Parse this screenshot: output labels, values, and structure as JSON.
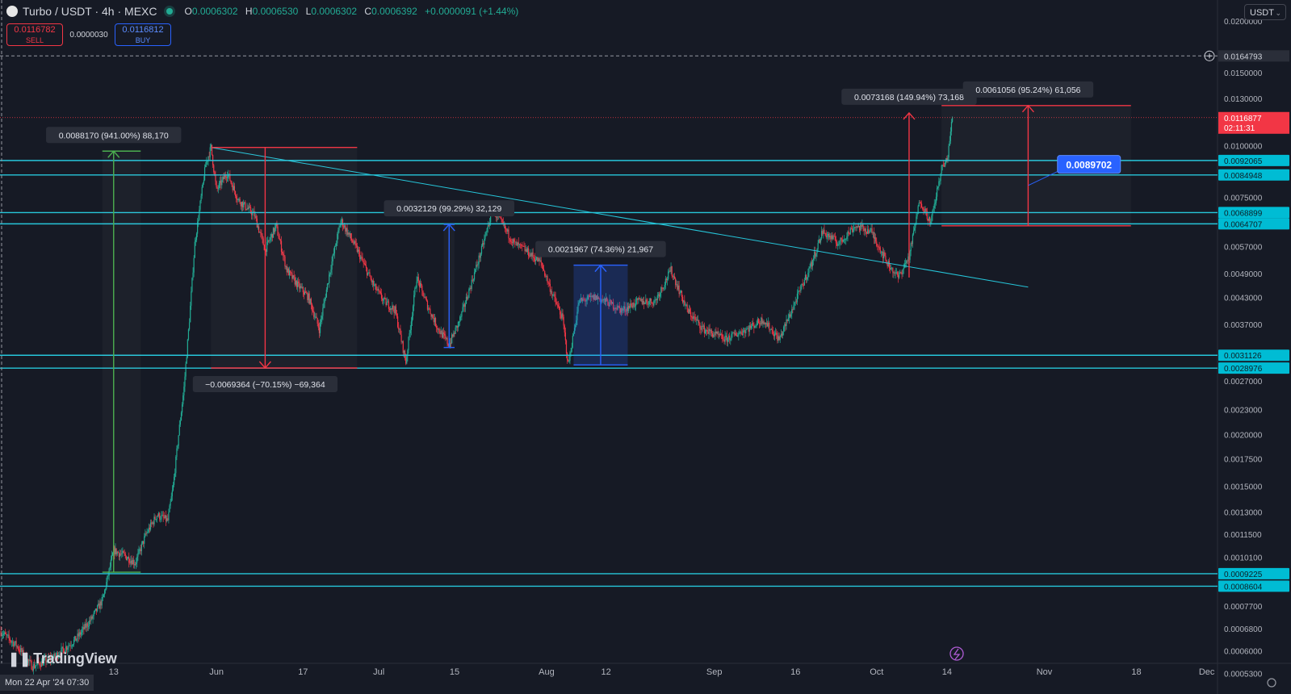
{
  "header": {
    "symbol": "Turbo / USDT · 4h · MEXC",
    "o_label": "O",
    "o_value": "0.0006302",
    "h_label": "H",
    "h_value": "0.0006530",
    "l_label": "L",
    "l_value": "0.0006302",
    "c_label": "C",
    "c_value": "0.0006392",
    "change": "+0.0000091 (+1.44%)"
  },
  "trade": {
    "sell_price": "0.0116782",
    "sell_label": "SELL",
    "spread": "0.0000030",
    "buy_price": "0.0116812",
    "buy_label": "BUY"
  },
  "currency": "USDT",
  "branding": "TradingView",
  "crosshair_time": "Mon 22 Apr '24   07:30",
  "colors": {
    "background": "#161a25",
    "up": "#22ab94",
    "down": "#f23645",
    "level": "#26c6da",
    "measure_up": "#4caf50",
    "measure_down": "#f23645",
    "range": "#2962ff"
  },
  "chart_data": {
    "type": "candlestick",
    "price_axis": {
      "scale": "log",
      "range": [
        0.00056,
        0.0225
      ],
      "ticks": [
        "0.0200000",
        "0.0150000",
        "0.0130000",
        "0.0100000",
        "0.0075000",
        "0.0057000",
        "0.0049000",
        "0.0043000",
        "0.0037000",
        "0.0027000",
        "0.0023000",
        "0.0020000",
        "0.0017500",
        "0.0015000",
        "0.0013000",
        "0.0011500",
        "0.0010100",
        "0.0007700",
        "0.0006800",
        "0.0006000",
        "0.0005300"
      ]
    },
    "time_axis": {
      "range": [
        "2024-04-22",
        "2024-12-03"
      ],
      "ticks": [
        {
          "date": "2024-05-13",
          "label": "13"
        },
        {
          "date": "2024-06-01",
          "label": "Jun"
        },
        {
          "date": "2024-06-17",
          "label": "17"
        },
        {
          "date": "2024-07-01",
          "label": "Jul"
        },
        {
          "date": "2024-07-15",
          "label": "15"
        },
        {
          "date": "2024-08-01",
          "label": "Aug"
        },
        {
          "date": "2024-08-12",
          "label": "12"
        },
        {
          "date": "2024-09-01",
          "label": "Sep"
        },
        {
          "date": "2024-09-16",
          "label": "16"
        },
        {
          "date": "2024-10-01",
          "label": "Oct"
        },
        {
          "date": "2024-10-14",
          "label": "14"
        },
        {
          "date": "2024-11-01",
          "label": "Nov"
        },
        {
          "date": "2024-11-18",
          "label": "18"
        },
        {
          "date": "2024-12-01",
          "label": "Dec"
        }
      ]
    },
    "price_path": [
      [
        "2024-04-22",
        0.00067
      ],
      [
        "2024-04-25",
        0.00062
      ],
      [
        "2024-04-28",
        0.00055
      ],
      [
        "2024-05-02",
        0.00058
      ],
      [
        "2024-05-06",
        0.00064
      ],
      [
        "2024-05-09",
        0.00072
      ],
      [
        "2024-05-11",
        0.0008
      ],
      [
        "2024-05-13",
        0.00105
      ],
      [
        "2024-05-15",
        0.00102
      ],
      [
        "2024-05-17",
        0.00098
      ],
      [
        "2024-05-19",
        0.00115
      ],
      [
        "2024-05-21",
        0.00128
      ],
      [
        "2024-05-23",
        0.00124
      ],
      [
        "2024-05-24",
        0.0015
      ],
      [
        "2024-05-25",
        0.002
      ],
      [
        "2024-05-26",
        0.0026
      ],
      [
        "2024-05-27",
        0.0038
      ],
      [
        "2024-05-28",
        0.0058
      ],
      [
        "2024-05-30",
        0.009
      ],
      [
        "2024-05-31",
        0.0099
      ],
      [
        "2024-06-01",
        0.0078
      ],
      [
        "2024-06-03",
        0.0086
      ],
      [
        "2024-06-05",
        0.0074
      ],
      [
        "2024-06-08",
        0.0068
      ],
      [
        "2024-06-10",
        0.0056
      ],
      [
        "2024-06-12",
        0.0064
      ],
      [
        "2024-06-14",
        0.005
      ],
      [
        "2024-06-16",
        0.0046
      ],
      [
        "2024-06-18",
        0.0043
      ],
      [
        "2024-06-20",
        0.0036
      ],
      [
        "2024-06-22",
        0.005
      ],
      [
        "2024-06-24",
        0.0066
      ],
      [
        "2024-06-27",
        0.0056
      ],
      [
        "2024-06-30",
        0.0046
      ],
      [
        "2024-07-02",
        0.0042
      ],
      [
        "2024-07-04",
        0.004
      ],
      [
        "2024-07-06",
        0.003
      ],
      [
        "2024-07-08",
        0.0048
      ],
      [
        "2024-07-10",
        0.0041
      ],
      [
        "2024-07-12",
        0.0036
      ],
      [
        "2024-07-14",
        0.0033
      ],
      [
        "2024-07-16",
        0.0038
      ],
      [
        "2024-07-18",
        0.0046
      ],
      [
        "2024-07-20",
        0.0056
      ],
      [
        "2024-07-22",
        0.007
      ],
      [
        "2024-07-24",
        0.0064
      ],
      [
        "2024-07-26",
        0.0058
      ],
      [
        "2024-07-28",
        0.0056
      ],
      [
        "2024-07-31",
        0.0052
      ],
      [
        "2024-08-02",
        0.0044
      ],
      [
        "2024-08-04",
        0.0038
      ],
      [
        "2024-08-05",
        0.00295
      ],
      [
        "2024-08-07",
        0.0042
      ],
      [
        "2024-08-10",
        0.0043
      ],
      [
        "2024-08-12",
        0.0042
      ],
      [
        "2024-08-15",
        0.004
      ],
      [
        "2024-08-18",
        0.0042
      ],
      [
        "2024-08-21",
        0.0042
      ],
      [
        "2024-08-24",
        0.005
      ],
      [
        "2024-08-27",
        0.004
      ],
      [
        "2024-08-30",
        0.0036
      ],
      [
        "2024-09-03",
        0.0034
      ],
      [
        "2024-09-07",
        0.0036
      ],
      [
        "2024-09-10",
        0.0038
      ],
      [
        "2024-09-13",
        0.0034
      ],
      [
        "2024-09-16",
        0.0042
      ],
      [
        "2024-09-19",
        0.0052
      ],
      [
        "2024-09-21",
        0.0062
      ],
      [
        "2024-09-24",
        0.0058
      ],
      [
        "2024-09-27",
        0.0064
      ],
      [
        "2024-09-30",
        0.0062
      ],
      [
        "2024-10-03",
        0.0052
      ],
      [
        "2024-10-05",
        0.0048
      ],
      [
        "2024-10-07",
        0.0054
      ],
      [
        "2024-10-09",
        0.0074
      ],
      [
        "2024-10-11",
        0.0065
      ],
      [
        "2024-10-13",
        0.0088
      ],
      [
        "2024-10-14",
        0.0092
      ],
      [
        "2024-10-15",
        0.01168
      ]
    ],
    "horizontal_levels": [
      {
        "price": 0.0092065,
        "label": "0.0092065"
      },
      {
        "price": 0.0084948,
        "label": "0.0084948"
      },
      {
        "price": 0.0068899,
        "label": "0.0068899"
      },
      {
        "price": 0.0064707,
        "label": "0.0064707"
      },
      {
        "price": 0.0031126,
        "label": "0.0031126"
      },
      {
        "price": 0.0028976,
        "label": "0.0028976"
      },
      {
        "price": 0.0009225,
        "label": "0.0009225"
      },
      {
        "price": 0.0008604,
        "label": "0.0008604"
      }
    ],
    "current_price": {
      "price": 0.0116877,
      "label": "0.0116877",
      "countdown": "02:11:31"
    },
    "crosshair_price": {
      "price": 0.0164793,
      "label": "0.0164793"
    },
    "price_callout": {
      "price": 0.0089702,
      "label": "0.0089702",
      "date": "2024-11-07"
    },
    "trendline": {
      "from": [
        "2024-05-31",
        0.0099
      ],
      "to": [
        "2024-10-29",
        0.00455
      ]
    },
    "measurements": [
      {
        "label": "0.0088170 (941.00%) 88,170",
        "from": [
          "2024-05-13",
          0.00093
        ],
        "to": [
          "2024-05-13",
          0.0097
        ],
        "x2": "2024-05-18",
        "direction": "up",
        "color": "green"
      },
      {
        "label": "−0.0069364 (−70.15%) −69,364",
        "from": [
          "2024-06-10",
          0.0099
        ],
        "to": [
          "2024-06-10",
          0.0029
        ],
        "x1": "2024-05-31",
        "x2": "2024-06-27",
        "direction": "down",
        "color": "red"
      },
      {
        "label": "0.0032129 (99.29%) 32,129",
        "from": [
          "2024-07-14",
          0.00325
        ],
        "to": [
          "2024-07-14",
          0.00645
        ],
        "x1": "2024-07-13",
        "x2": "2024-07-15",
        "direction": "up",
        "color": "blue"
      },
      {
        "label": "0.0021967 (74.36%) 21,967",
        "from": [
          "2024-08-11",
          0.00295
        ],
        "to": [
          "2024-08-11",
          0.00514
        ],
        "x1": "2024-08-06",
        "x2": "2024-08-16",
        "direction": "up",
        "color": "blue",
        "filled": true
      },
      {
        "label": "0.0073168 (149.94%) 73,168",
        "from": [
          "2024-10-07",
          0.0048
        ],
        "to": [
          "2024-10-07",
          0.012
        ],
        "direction": "up",
        "color": "red",
        "arrow_only": true
      },
      {
        "label": "0.0061056 (95.24%) 61,056",
        "from": [
          "2024-10-29",
          0.0064
        ],
        "to": [
          "2024-10-29",
          0.0125
        ],
        "x1": "2024-10-13",
        "x2": "2024-11-17",
        "direction": "up",
        "color": "red"
      }
    ]
  }
}
